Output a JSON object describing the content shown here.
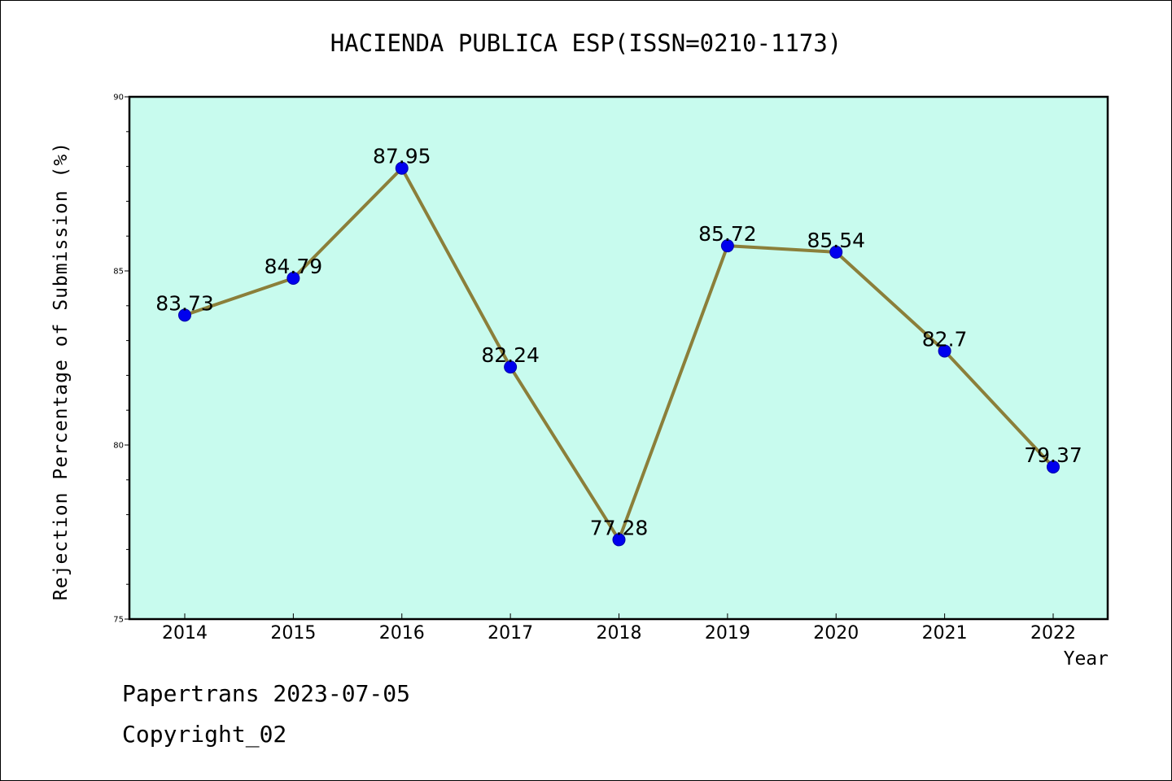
{
  "chart_data": {
    "type": "line",
    "title": "HACIENDA PUBLICA ESP(ISSN=0210-1173)",
    "xlabel": "Year",
    "ylabel": "Rejection Percentage of Submission (%)",
    "categories": [
      "2014",
      "2015",
      "2016",
      "2017",
      "2018",
      "2019",
      "2020",
      "2021",
      "2022"
    ],
    "series": [
      {
        "values": [
          83.73,
          84.79,
          87.95,
          82.24,
          77.28,
          85.72,
          85.54,
          82.7,
          79.37
        ],
        "data_labels": [
          "83.73",
          "84.79",
          "87.95",
          "82.24",
          "77.28",
          "85.72",
          "85.54",
          "82.7",
          "79.37"
        ],
        "line_color": "#8b7f3a",
        "marker_color": "#0000ee"
      }
    ],
    "ylim": [
      75,
      90
    ],
    "yticks": [
      75,
      80,
      85,
      90
    ],
    "grid": false,
    "plot_background": "#c8fbee"
  },
  "footer": {
    "line1": "Papertrans 2023-07-05",
    "line2": "Copyright_02"
  }
}
